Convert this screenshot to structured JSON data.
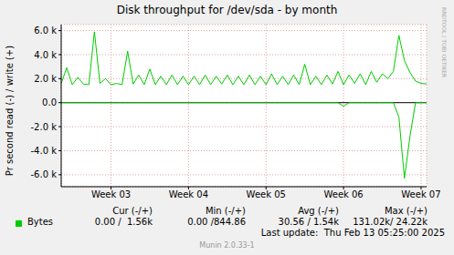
{
  "chart_data": {
    "type": "line",
    "title": "Disk throughput for /dev/sda - by month",
    "y_label": "Pr second read (-) / write (+)",
    "categories": [
      null,
      null,
      null,
      null,
      null,
      null,
      null,
      null,
      null,
      "Week 03",
      null,
      null,
      null,
      null,
      null,
      null,
      null,
      null,
      null,
      null,
      null,
      null,
      null,
      "Week 04",
      null,
      null,
      null,
      null,
      null,
      null,
      null,
      null,
      null,
      null,
      null,
      null,
      null,
      "Week 05",
      null,
      null,
      null,
      null,
      null,
      null,
      null,
      null,
      null,
      null,
      null,
      null,
      null,
      "Week 06",
      null,
      null,
      null,
      null,
      null,
      null,
      null,
      null,
      null,
      null,
      null,
      null,
      null,
      "Week 07",
      null
    ],
    "series": [
      {
        "name": "Bytes",
        "color": "#00cc00",
        "values": [
          1600,
          2900,
          1500,
          2100,
          1550,
          1500,
          5900,
          1600,
          2000,
          1500,
          1600,
          1500,
          4300,
          1550,
          2300,
          1500,
          2800,
          1500,
          2200,
          1500,
          2300,
          1500,
          2200,
          1500,
          2200,
          1500,
          2300,
          1500,
          2200,
          1550,
          2300,
          1500,
          2200,
          1500,
          2300,
          1500,
          2200,
          1500,
          2400,
          1500,
          2200,
          1500,
          2300,
          1500,
          3200,
          1500,
          2200,
          1500,
          2300,
          1550,
          2600,
          1500,
          2300,
          1600,
          2400,
          1500,
          2600,
          1700,
          2400,
          2000,
          2600,
          5600,
          3500,
          2500,
          1800,
          1600,
          1560
        ],
        "read_values": [
          0,
          0,
          0,
          0,
          0,
          0,
          0,
          0,
          0,
          0,
          0,
          0,
          0,
          0,
          0,
          0,
          0,
          0,
          0,
          0,
          0,
          0,
          0,
          0,
          0,
          0,
          0,
          0,
          0,
          0,
          0,
          0,
          0,
          0,
          0,
          0,
          0,
          0,
          0,
          0,
          0,
          0,
          0,
          0,
          0,
          0,
          0,
          0,
          0,
          0,
          0,
          -300,
          0,
          0,
          0,
          0,
          0,
          0,
          0,
          0,
          0,
          -1200,
          -6300,
          -2800,
          0,
          0,
          0
        ]
      }
    ],
    "ylim": [
      -7000,
      6500
    ],
    "yticks": [
      {
        "value": -6000,
        "label": "-6.0 k"
      },
      {
        "value": -4000,
        "label": "-4.0 k"
      },
      {
        "value": -2000,
        "label": "-2.0 k"
      },
      {
        "value": 0,
        "label": "0.0"
      },
      {
        "value": 2000,
        "label": "2.0 k"
      },
      {
        "value": 4000,
        "label": "4.0 k"
      },
      {
        "value": 6000,
        "label": "6.0 k"
      }
    ],
    "grid": true,
    "legend_table": {
      "columns": [
        "Cur (-/+)",
        "Min (-/+)",
        "Avg (-/+)",
        "Max (-/+)"
      ],
      "rows": [
        {
          "label": "Bytes",
          "cells": [
            "0.00 /  1.56k",
            "0.00 /844.86",
            "30.56 / 1.54k",
            "131.02k/ 24.22k"
          ]
        }
      ]
    },
    "footer": "Last update:  Thu Feb 13 05:25:00 2025",
    "credit": "Munin 2.0.33-1",
    "watermark": "RRDTOOL / TOBI OETIKER"
  }
}
